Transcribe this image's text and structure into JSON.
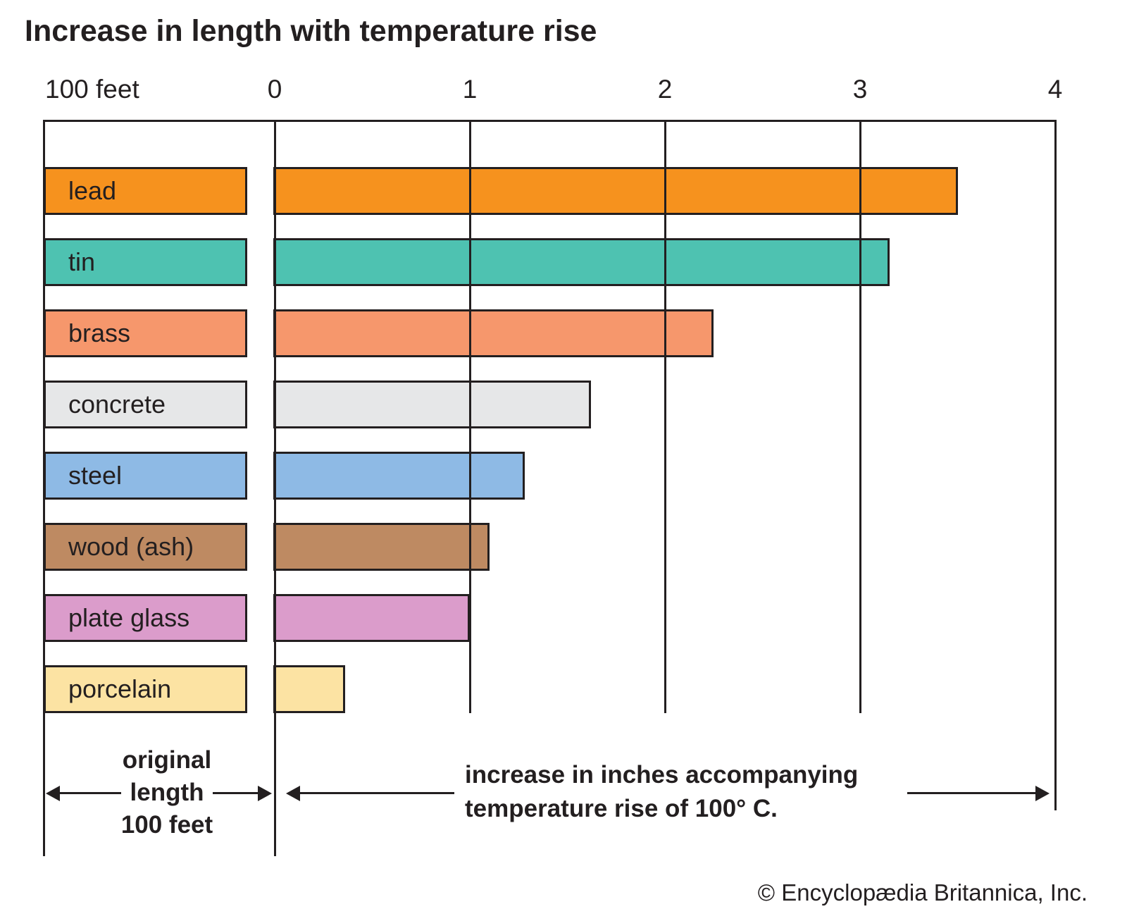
{
  "title": "Increase in length with temperature rise",
  "left_axis_label": "100 feet",
  "ink_color": "#231f20",
  "annotations": {
    "left_line1": "original",
    "left_line2": "length",
    "left_line3": "100 feet",
    "right_line1": "increase in inches accompanying",
    "right_line2": "temperature rise of 100° C."
  },
  "credit": "© Encyclopædia Britannica, Inc.",
  "chart_data": {
    "type": "bar",
    "orientation": "horizontal",
    "title": "Increase in length with temperature rise",
    "categories": [
      "lead",
      "tin",
      "brass",
      "concrete",
      "steel",
      "wood (ash)",
      "plate glass",
      "porcelain"
    ],
    "values": [
      3.5,
      3.15,
      2.25,
      1.62,
      1.28,
      1.1,
      1.0,
      0.36
    ],
    "colors": [
      "#f6921e",
      "#4ec2b1",
      "#f6976c",
      "#e6e7e8",
      "#8ebae5",
      "#be8a62",
      "#db9ccb",
      "#fce3a3"
    ],
    "x_ticks": [
      0,
      1,
      2,
      3,
      4
    ],
    "xlim": [
      0,
      4
    ],
    "x_axis_unit": "inches",
    "xlabel": "increase in inches accompanying temperature rise of 100° C.",
    "left_column_label": "original length 100 feet",
    "grid": true,
    "legend": false
  }
}
